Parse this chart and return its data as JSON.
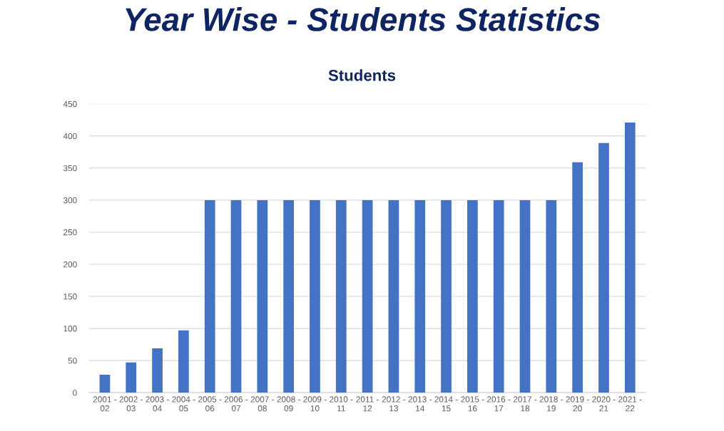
{
  "chart_data": {
    "type": "bar",
    "title": "Year Wise - Students Statistics",
    "subtitle": "Students",
    "categories": [
      "2001 -\n02",
      "2002 -\n03",
      "2003 -\n04",
      "2004 -\n05",
      "2005 -\n06",
      "2006 -\n07",
      "2007 -\n08",
      "2008 -\n09",
      "2009 -\n10",
      "2010 -\n11",
      "2011 -\n12",
      "2012 -\n13",
      "2013 -\n14",
      "2014 -\n15",
      "2015 -\n16",
      "2016 -\n17",
      "2017 -\n18",
      "2018 -\n19",
      "2019 -\n20",
      "2020 -\n21",
      "2021 -\n22"
    ],
    "values": [
      28,
      47,
      69,
      97,
      300,
      300,
      300,
      300,
      300,
      300,
      300,
      300,
      300,
      300,
      300,
      300,
      300,
      300,
      359,
      389,
      421
    ],
    "color": "#4472c4",
    "ylim": [
      0,
      450
    ],
    "yticks": [
      0,
      50,
      100,
      150,
      200,
      250,
      300,
      350,
      400,
      450
    ],
    "grid": "y",
    "legend": false
  }
}
